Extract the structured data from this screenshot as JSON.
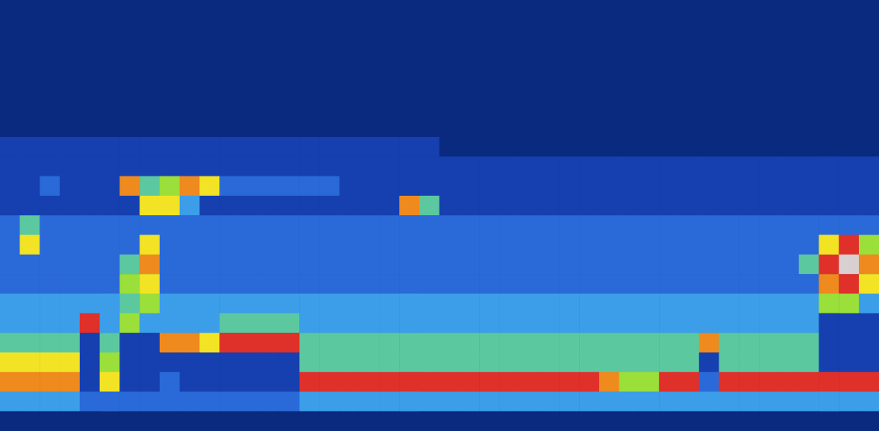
{
  "chart_data": {
    "type": "heatmap",
    "tick_labels": false,
    "grid": false,
    "color_range": [
      0,
      9
    ],
    "colors": [
      "#0a2a80",
      "#1640b0",
      "#2a6ad8",
      "#3c9ee8",
      "#5cc8a0",
      "#9adf3a",
      "#f2e424",
      "#ef8a1e",
      "#e0302a",
      "#d8d0d0"
    ],
    "cells": [
      [
        0,
        0,
        0,
        0,
        0,
        0,
        0,
        0,
        0,
        0,
        0,
        0,
        0,
        0,
        0,
        0,
        0,
        0,
        0,
        0,
        0,
        0,
        0,
        0,
        0,
        0,
        0,
        0,
        0,
        0,
        0,
        0,
        0,
        0,
        0,
        0,
        0,
        0,
        0,
        0,
        0,
        0,
        0,
        0
      ],
      [
        0,
        0,
        0,
        0,
        0,
        0,
        0,
        0,
        0,
        0,
        0,
        0,
        0,
        0,
        0,
        0,
        0,
        0,
        0,
        0,
        0,
        0,
        0,
        0,
        0,
        0,
        0,
        0,
        0,
        0,
        0,
        0,
        0,
        0,
        0,
        0,
        0,
        0,
        0,
        0,
        0,
        0,
        0,
        0
      ],
      [
        0,
        0,
        0,
        0,
        0,
        0,
        0,
        0,
        0,
        0,
        0,
        0,
        0,
        0,
        0,
        0,
        0,
        0,
        0,
        0,
        0,
        0,
        0,
        0,
        0,
        0,
        0,
        0,
        0,
        0,
        0,
        0,
        0,
        0,
        0,
        0,
        0,
        0,
        0,
        0,
        0,
        0,
        0,
        0
      ],
      [
        0,
        0,
        0,
        0,
        0,
        0,
        0,
        0,
        0,
        0,
        0,
        0,
        0,
        0,
        0,
        0,
        0,
        0,
        0,
        0,
        0,
        0,
        0,
        0,
        0,
        0,
        0,
        0,
        0,
        0,
        0,
        0,
        0,
        0,
        0,
        0,
        0,
        0,
        0,
        0,
        0,
        0,
        0,
        0
      ],
      [
        0,
        0,
        0,
        0,
        0,
        0,
        0,
        0,
        0,
        0,
        0,
        0,
        0,
        0,
        0,
        0,
        0,
        0,
        0,
        0,
        0,
        0,
        0,
        0,
        0,
        0,
        0,
        0,
        0,
        0,
        0,
        0,
        0,
        0,
        0,
        0,
        0,
        0,
        0,
        0,
        0,
        0,
        0,
        0
      ],
      [
        0,
        0,
        0,
        0,
        0,
        0,
        0,
        0,
        0,
        0,
        0,
        0,
        0,
        0,
        0,
        0,
        0,
        0,
        0,
        0,
        0,
        0,
        0,
        0,
        0,
        0,
        0,
        0,
        0,
        0,
        0,
        0,
        0,
        0,
        0,
        0,
        0,
        0,
        0,
        0,
        0,
        0,
        0,
        0
      ],
      [
        0,
        0,
        0,
        0,
        0,
        0,
        0,
        0,
        0,
        0,
        0,
        0,
        0,
        0,
        0,
        0,
        0,
        0,
        0,
        0,
        0,
        0,
        0,
        0,
        0,
        0,
        0,
        0,
        0,
        0,
        0,
        0,
        0,
        0,
        0,
        0,
        0,
        0,
        0,
        0,
        0,
        0,
        0,
        0
      ],
      [
        1,
        1,
        1,
        1,
        1,
        1,
        1,
        1,
        1,
        1,
        1,
        1,
        1,
        1,
        1,
        1,
        1,
        1,
        1,
        1,
        1,
        1,
        0,
        0,
        0,
        0,
        0,
        0,
        0,
        0,
        0,
        0,
        0,
        0,
        0,
        0,
        0,
        0,
        0,
        0,
        0,
        0,
        0,
        0
      ],
      [
        1,
        1,
        1,
        1,
        1,
        1,
        1,
        1,
        1,
        1,
        1,
        1,
        1,
        1,
        1,
        1,
        1,
        1,
        1,
        1,
        1,
        1,
        1,
        1,
        1,
        1,
        1,
        1,
        1,
        1,
        1,
        1,
        1,
        1,
        1,
        1,
        1,
        1,
        1,
        1,
        1,
        1,
        1,
        1
      ],
      [
        1,
        1,
        2,
        1,
        1,
        1,
        7,
        4,
        5,
        7,
        6,
        2,
        2,
        2,
        2,
        2,
        2,
        1,
        1,
        1,
        1,
        1,
        1,
        1,
        1,
        1,
        1,
        1,
        1,
        1,
        1,
        1,
        1,
        1,
        1,
        1,
        1,
        1,
        1,
        1,
        1,
        1,
        1,
        1
      ],
      [
        1,
        1,
        1,
        1,
        1,
        1,
        1,
        6,
        6,
        3,
        1,
        1,
        1,
        1,
        1,
        1,
        1,
        1,
        1,
        1,
        7,
        4,
        1,
        1,
        1,
        1,
        1,
        1,
        1,
        1,
        1,
        1,
        1,
        1,
        1,
        1,
        1,
        1,
        1,
        1,
        1,
        1,
        1,
        1
      ],
      [
        2,
        4,
        2,
        2,
        2,
        2,
        2,
        2,
        2,
        2,
        2,
        2,
        2,
        2,
        2,
        2,
        2,
        2,
        2,
        2,
        2,
        2,
        2,
        2,
        2,
        2,
        2,
        2,
        2,
        2,
        2,
        2,
        2,
        2,
        2,
        2,
        2,
        2,
        2,
        2,
        2,
        2,
        2,
        2
      ],
      [
        2,
        6,
        2,
        2,
        2,
        2,
        2,
        6,
        2,
        2,
        2,
        2,
        2,
        2,
        2,
        2,
        2,
        2,
        2,
        2,
        2,
        2,
        2,
        2,
        2,
        2,
        2,
        2,
        2,
        2,
        2,
        2,
        2,
        2,
        2,
        2,
        2,
        2,
        2,
        2,
        2,
        6,
        8,
        5
      ],
      [
        2,
        2,
        2,
        2,
        2,
        2,
        4,
        7,
        2,
        2,
        2,
        2,
        2,
        2,
        2,
        2,
        2,
        2,
        2,
        2,
        2,
        2,
        2,
        2,
        2,
        2,
        2,
        2,
        2,
        2,
        2,
        2,
        2,
        2,
        2,
        2,
        2,
        2,
        2,
        2,
        4,
        8,
        9,
        7
      ],
      [
        2,
        2,
        2,
        2,
        2,
        2,
        5,
        6,
        2,
        2,
        2,
        2,
        2,
        2,
        2,
        2,
        2,
        2,
        2,
        2,
        2,
        2,
        2,
        2,
        2,
        2,
        2,
        2,
        2,
        2,
        2,
        2,
        2,
        2,
        2,
        2,
        2,
        2,
        2,
        2,
        2,
        7,
        8,
        6
      ],
      [
        3,
        3,
        3,
        3,
        3,
        3,
        4,
        5,
        3,
        3,
        3,
        3,
        3,
        3,
        3,
        3,
        3,
        3,
        3,
        3,
        3,
        3,
        3,
        3,
        3,
        3,
        3,
        3,
        3,
        3,
        3,
        3,
        3,
        3,
        3,
        3,
        3,
        3,
        3,
        3,
        3,
        5,
        5,
        3
      ],
      [
        3,
        3,
        3,
        3,
        8,
        3,
        5,
        3,
        3,
        3,
        3,
        4,
        4,
        4,
        4,
        3,
        3,
        3,
        3,
        3,
        3,
        3,
        3,
        3,
        3,
        3,
        3,
        3,
        3,
        3,
        3,
        3,
        3,
        3,
        3,
        3,
        3,
        3,
        3,
        3,
        3,
        1,
        1,
        1
      ],
      [
        4,
        4,
        4,
        4,
        1,
        4,
        1,
        1,
        7,
        7,
        6,
        8,
        8,
        8,
        8,
        4,
        4,
        4,
        4,
        4,
        4,
        4,
        4,
        4,
        4,
        4,
        4,
        4,
        4,
        4,
        4,
        4,
        4,
        4,
        4,
        7,
        4,
        4,
        4,
        4,
        4,
        1,
        1,
        1
      ],
      [
        6,
        6,
        6,
        6,
        1,
        5,
        1,
        1,
        1,
        1,
        1,
        1,
        1,
        1,
        1,
        4,
        4,
        4,
        4,
        4,
        4,
        4,
        4,
        4,
        4,
        4,
        4,
        4,
        4,
        4,
        4,
        4,
        4,
        4,
        4,
        1,
        4,
        4,
        4,
        4,
        4,
        1,
        1,
        1
      ],
      [
        7,
        7,
        7,
        7,
        1,
        6,
        1,
        1,
        2,
        1,
        1,
        1,
        1,
        1,
        1,
        8,
        8,
        8,
        8,
        8,
        8,
        8,
        8,
        8,
        8,
        8,
        8,
        8,
        8,
        8,
        7,
        5,
        5,
        8,
        8,
        2,
        8,
        8,
        8,
        8,
        8,
        8,
        8,
        8
      ],
      [
        3,
        3,
        3,
        3,
        2,
        2,
        2,
        2,
        2,
        2,
        2,
        2,
        2,
        2,
        2,
        3,
        3,
        3,
        3,
        3,
        3,
        3,
        3,
        3,
        3,
        3,
        3,
        3,
        3,
        3,
        3,
        3,
        3,
        3,
        3,
        3,
        3,
        3,
        3,
        3,
        3,
        3,
        3,
        3
      ],
      [
        0,
        0,
        0,
        0,
        0,
        0,
        0,
        0,
        0,
        0,
        0,
        0,
        0,
        0,
        0,
        0,
        0,
        0,
        0,
        0,
        0,
        0,
        0,
        0,
        0,
        0,
        0,
        0,
        0,
        0,
        0,
        0,
        0,
        0,
        0,
        0,
        0,
        0,
        0,
        0,
        0,
        0,
        0,
        0
      ]
    ]
  }
}
